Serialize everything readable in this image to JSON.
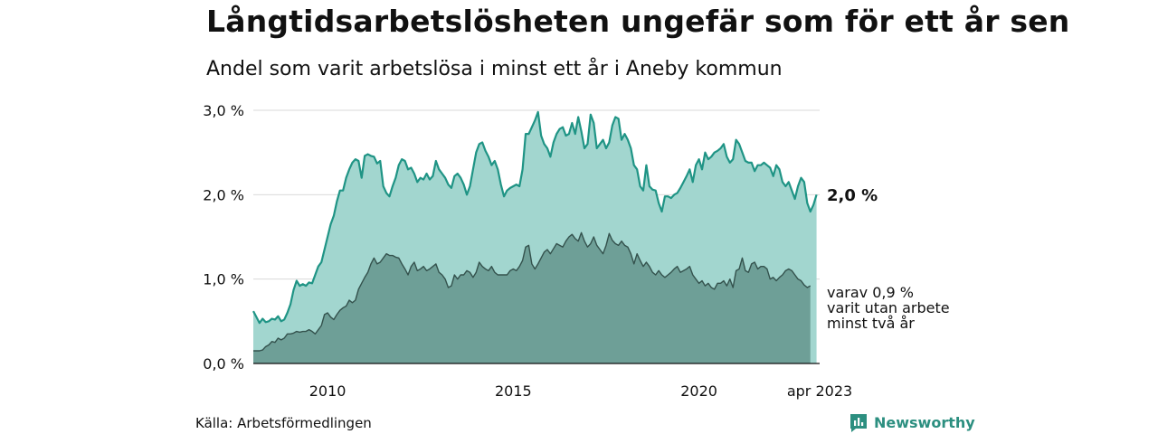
{
  "title": "Långtidsarbetslösheten ungefär som för ett år sen",
  "subtitle": "Andel som varit arbetslösa i minst ett år i Aneby kommun",
  "source": "Källa: Arbetsförmedlingen",
  "brand": {
    "name": "Newsworthy",
    "icon": "newsworthy-logo-icon"
  },
  "colors": {
    "upper_fill": "#a2d6cf",
    "upper_line": "#1f9485",
    "lower_fill": "#6e9f97",
    "lower_line": "#34524d",
    "grid": "#d9d9d9"
  },
  "chart_data": {
    "type": "area",
    "x_unit": "month",
    "x_start": "2008-01",
    "x_end": "2023-04",
    "xlim": [
      "2008-01",
      "2023-04"
    ],
    "ylim": [
      0,
      3.0
    ],
    "y_ticks": [
      {
        "value": 0,
        "label": "0,0 %"
      },
      {
        "value": 1,
        "label": "1,0 %"
      },
      {
        "value": 2,
        "label": "2,0 %"
      },
      {
        "value": 3,
        "label": "3,0 %"
      }
    ],
    "x_ticks": [
      {
        "value": "2010-01",
        "label": "2010"
      },
      {
        "value": "2015-01",
        "label": "2015"
      },
      {
        "value": "2020-01",
        "label": "2020"
      },
      {
        "value": "2023-04",
        "label": "apr 2023"
      }
    ],
    "grid": true,
    "series": [
      {
        "label_lines": [
          "2,0 %"
        ],
        "values": [
          0.62,
          0.55,
          0.48,
          0.53,
          0.49,
          0.5,
          0.53,
          0.52,
          0.56,
          0.5,
          0.52,
          0.6,
          0.7,
          0.87,
          0.98,
          0.92,
          0.94,
          0.92,
          0.96,
          0.95,
          1.05,
          1.15,
          1.2,
          1.35,
          1.5,
          1.65,
          1.75,
          1.92,
          2.05,
          2.05,
          2.2,
          2.3,
          2.38,
          2.42,
          2.4,
          2.2,
          2.46,
          2.48,
          2.46,
          2.45,
          2.37,
          2.4,
          2.1,
          2.02,
          1.98,
          2.1,
          2.2,
          2.35,
          2.42,
          2.4,
          2.3,
          2.32,
          2.25,
          2.15,
          2.2,
          2.18,
          2.25,
          2.18,
          2.22,
          2.4,
          2.3,
          2.25,
          2.2,
          2.12,
          2.08,
          2.22,
          2.25,
          2.2,
          2.12,
          2.0,
          2.1,
          2.3,
          2.5,
          2.6,
          2.62,
          2.52,
          2.45,
          2.35,
          2.4,
          2.3,
          2.12,
          1.98,
          2.05,
          2.08,
          2.1,
          2.12,
          2.1,
          2.3,
          2.72,
          2.72,
          2.8,
          2.88,
          2.98,
          2.7,
          2.6,
          2.55,
          2.45,
          2.62,
          2.72,
          2.78,
          2.8,
          2.7,
          2.72,
          2.85,
          2.72,
          2.92,
          2.75,
          2.55,
          2.6,
          2.95,
          2.85,
          2.55,
          2.6,
          2.65,
          2.55,
          2.62,
          2.82,
          2.92,
          2.9,
          2.65,
          2.72,
          2.65,
          2.55,
          2.35,
          2.3,
          2.1,
          2.05,
          2.35,
          2.1,
          2.06,
          2.05,
          1.9,
          1.8,
          1.98,
          1.98,
          1.96,
          2.0,
          2.02,
          2.08,
          2.15,
          2.22,
          2.3,
          2.15,
          2.35,
          2.42,
          2.3,
          2.5,
          2.42,
          2.45,
          2.5,
          2.52,
          2.55,
          2.6,
          2.45,
          2.38,
          2.42,
          2.65,
          2.6,
          2.5,
          2.4,
          2.38,
          2.38,
          2.28,
          2.35,
          2.35,
          2.38,
          2.35,
          2.32,
          2.22,
          2.35,
          2.3,
          2.15,
          2.1,
          2.15,
          2.05,
          1.95,
          2.1,
          2.2,
          2.15,
          1.9,
          1.8,
          1.88,
          2.0
        ]
      },
      {
        "label_lines": [
          "varav 0,9 %",
          "varit utan arbete",
          "minst två år"
        ],
        "values": [
          0.15,
          0.15,
          0.15,
          0.16,
          0.2,
          0.22,
          0.26,
          0.25,
          0.3,
          0.28,
          0.3,
          0.35,
          0.35,
          0.36,
          0.38,
          0.37,
          0.38,
          0.38,
          0.4,
          0.38,
          0.35,
          0.4,
          0.45,
          0.58,
          0.6,
          0.55,
          0.52,
          0.58,
          0.63,
          0.66,
          0.68,
          0.75,
          0.72,
          0.75,
          0.88,
          0.95,
          1.02,
          1.08,
          1.18,
          1.25,
          1.18,
          1.2,
          1.25,
          1.3,
          1.28,
          1.28,
          1.26,
          1.25,
          1.18,
          1.12,
          1.05,
          1.15,
          1.2,
          1.1,
          1.12,
          1.15,
          1.1,
          1.12,
          1.15,
          1.18,
          1.08,
          1.05,
          1.0,
          0.9,
          0.92,
          1.05,
          1.0,
          1.05,
          1.05,
          1.1,
          1.08,
          1.02,
          1.08,
          1.2,
          1.15,
          1.12,
          1.1,
          1.15,
          1.08,
          1.05,
          1.05,
          1.05,
          1.05,
          1.1,
          1.12,
          1.1,
          1.15,
          1.22,
          1.38,
          1.4,
          1.18,
          1.12,
          1.18,
          1.25,
          1.32,
          1.35,
          1.3,
          1.36,
          1.42,
          1.4,
          1.38,
          1.45,
          1.5,
          1.53,
          1.48,
          1.45,
          1.55,
          1.45,
          1.38,
          1.42,
          1.5,
          1.4,
          1.35,
          1.3,
          1.4,
          1.54,
          1.46,
          1.42,
          1.4,
          1.45,
          1.4,
          1.38,
          1.3,
          1.18,
          1.3,
          1.22,
          1.15,
          1.2,
          1.15,
          1.08,
          1.05,
          1.1,
          1.05,
          1.02,
          1.05,
          1.08,
          1.12,
          1.15,
          1.08,
          1.1,
          1.12,
          1.15,
          1.05,
          1.0,
          0.95,
          0.98,
          0.92,
          0.95,
          0.9,
          0.88,
          0.95,
          0.95,
          0.98,
          0.92,
          1.0,
          0.9,
          1.1,
          1.12,
          1.25,
          1.1,
          1.08,
          1.18,
          1.2,
          1.12,
          1.15,
          1.15,
          1.12,
          1.0,
          1.02,
          0.98,
          1.02,
          1.05,
          1.1,
          1.12,
          1.1,
          1.05,
          1.0,
          0.98,
          0.93,
          0.9,
          0.92
        ]
      }
    ]
  }
}
